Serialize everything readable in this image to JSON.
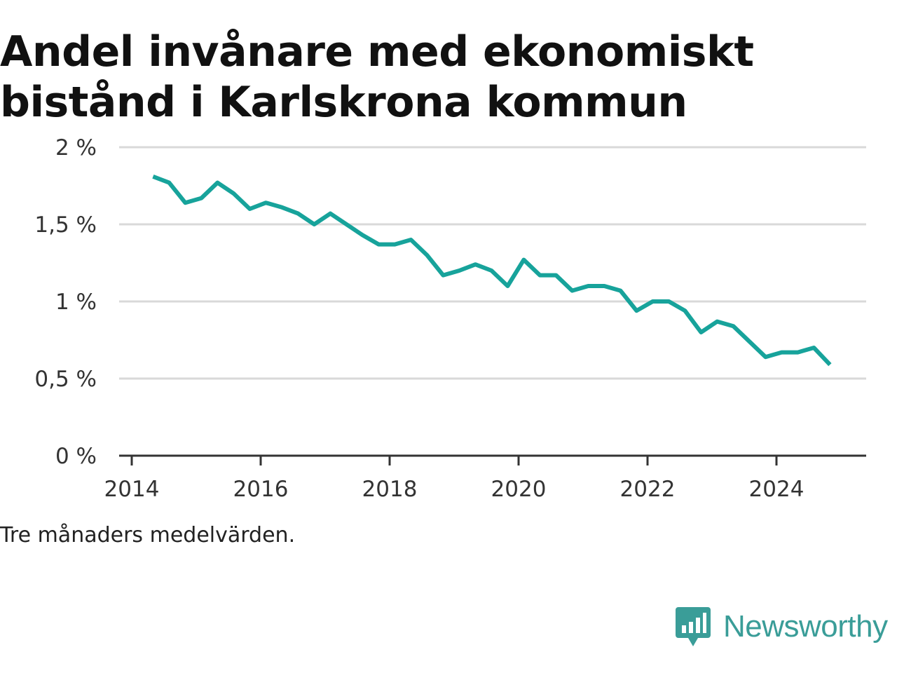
{
  "title": "Andel invånare med ekonomiskt bistånd i Karlskrona kommun",
  "note": "Tre månaders medelvärden.",
  "brand": {
    "name": "Newsworthy",
    "icon": "newsworthy-logo-icon",
    "color": "#3a9d98"
  },
  "colors": {
    "line": "#17a39b",
    "grid": "#d9d9d9",
    "axis": "#333333"
  },
  "chart_data": {
    "type": "line",
    "title": "Andel invånare med ekonomiskt bistånd i Karlskrona kommun",
    "xlabel": "",
    "ylabel": "",
    "x_ticks": [
      "2014",
      "2016",
      "2018",
      "2020",
      "2022",
      "2024"
    ],
    "y_ticks": [
      "0 %",
      "0,5 %",
      "1 %",
      "1,5 %",
      "2 %"
    ],
    "ylim": [
      0,
      2
    ],
    "xlim": [
      2014,
      2025.3
    ],
    "grid": true,
    "series": [
      {
        "x": [
          2014.33,
          2014.58,
          2014.83,
          2015.08,
          2015.33,
          2015.58,
          2015.83,
          2016.08,
          2016.33,
          2016.58,
          2016.83,
          2017.08,
          2017.33,
          2017.58,
          2017.83,
          2018.08,
          2018.33,
          2018.58,
          2018.83,
          2019.08,
          2019.33,
          2019.58,
          2019.83,
          2020.08,
          2020.33,
          2020.58,
          2020.83,
          2021.08,
          2021.33,
          2021.58,
          2021.83,
          2022.08,
          2022.33,
          2022.58,
          2022.83,
          2023.08,
          2023.33,
          2023.58,
          2023.83,
          2024.08,
          2024.33,
          2024.58,
          2024.83
        ],
        "values": [
          1.81,
          1.77,
          1.64,
          1.67,
          1.77,
          1.7,
          1.6,
          1.64,
          1.61,
          1.57,
          1.5,
          1.57,
          1.5,
          1.43,
          1.37,
          1.37,
          1.4,
          1.3,
          1.17,
          1.2,
          1.24,
          1.2,
          1.1,
          1.27,
          1.17,
          1.17,
          1.07,
          1.1,
          1.1,
          1.07,
          0.94,
          1.0,
          1.0,
          0.94,
          0.8,
          0.87,
          0.84,
          0.74,
          0.64,
          0.67,
          0.67,
          0.7,
          0.59
        ]
      }
    ]
  }
}
